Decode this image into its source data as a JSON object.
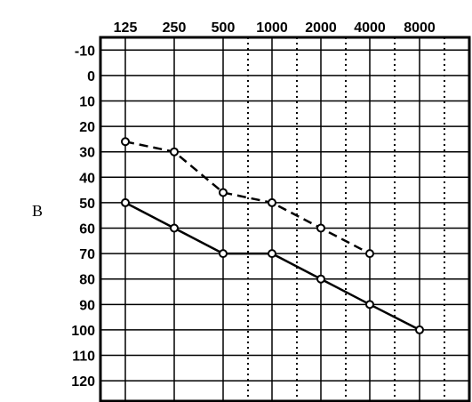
{
  "panel_label": "B",
  "chart_data": {
    "type": "line",
    "x_ticks": [
      "125",
      "250",
      "500",
      "1000",
      "2000",
      "4000",
      "8000"
    ],
    "y_ticks": [
      "-10",
      "0",
      "10",
      "20",
      "30",
      "40",
      "50",
      "60",
      "70",
      "80",
      "90",
      "100",
      "110",
      "120"
    ],
    "ylim": [
      -15,
      128
    ],
    "y_inverted": true,
    "grid": true,
    "line_color": "#000000",
    "series": [
      {
        "style": "dashed",
        "marker": "circle",
        "x": [
          "125",
          "250",
          "500",
          "1000",
          "2000",
          "4000"
        ],
        "y": [
          26,
          30,
          46,
          50,
          60,
          70
        ]
      },
      {
        "style": "solid",
        "marker": "circle",
        "x": [
          "125",
          "250",
          "500",
          "1000",
          "2000",
          "4000",
          "8000"
        ],
        "y": [
          50,
          60,
          70,
          70,
          80,
          90,
          100
        ]
      }
    ]
  }
}
